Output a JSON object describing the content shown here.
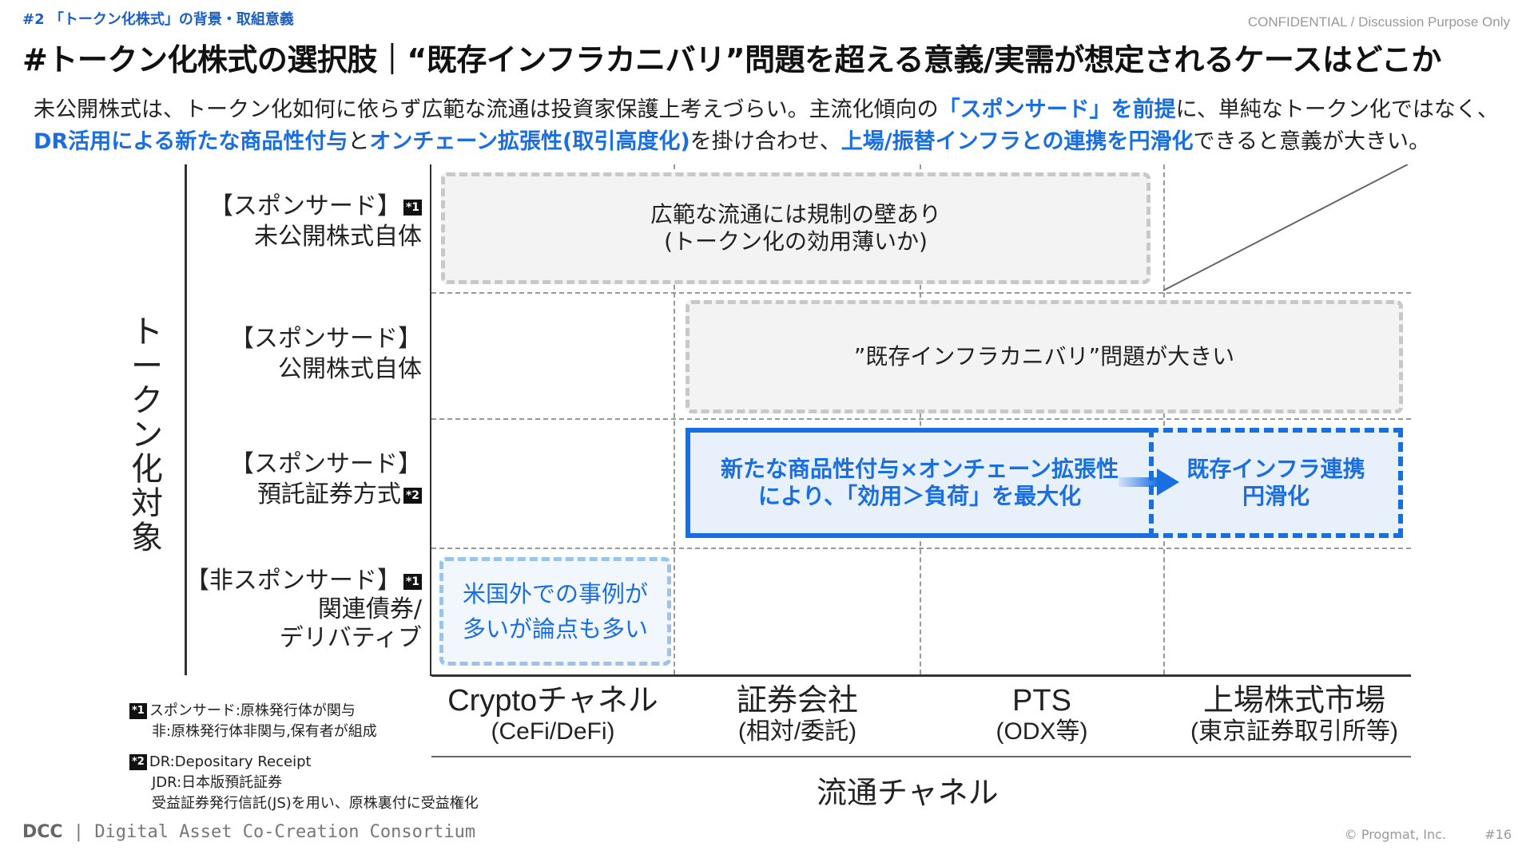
{
  "header": {
    "section_label": "#2 「トークン化株式」の背景・取組意義",
    "confidential": "CONFIDENTIAL / Discussion Purpose Only",
    "title": "#トークン化株式の選択肢｜“既存インフラカニバリ”問題を超える意義/実需が想定されるケースはどこか"
  },
  "intro": {
    "line1_a": "未公開株式は、トークン化如何に依らず広範な流通は投資家保護上考えづらい。主流化傾向の",
    "line1_b": "「スポンサード」を前提",
    "line1_c": "に、単純なトークン化ではなく、",
    "line2_a": "DR活用による新たな商品性付与",
    "line2_b": "と",
    "line2_c": "オンチェーン拡張性(取引高度化)",
    "line2_d": "を掛け合わせ、",
    "line2_e": "上場/振替インフラとの連携を円滑化",
    "line2_f": "できると意義が大きい。"
  },
  "matrix": {
    "y_axis_title": "トークン化対象",
    "x_axis_title": "流通チャネル",
    "rows": [
      {
        "line1": "【スポンサード】",
        "badge": "*1",
        "line2": "未公開株式自体"
      },
      {
        "line1": "【スポンサード】",
        "line2": "公開株式自体"
      },
      {
        "line1": "【スポンサード】",
        "line2": "預託証券方式",
        "badge": "*2"
      },
      {
        "line1": "【非スポンサード】",
        "badge": "*1",
        "line2": "関連債券/",
        "line3": "デリバティブ"
      }
    ],
    "columns": [
      {
        "main": "Cryptoチャネル",
        "sub": "(CeFi/DeFi)"
      },
      {
        "main": "証券会社",
        "sub": "(相対/委託)"
      },
      {
        "main": "PTS",
        "sub": "(ODX等)"
      },
      {
        "main": "上場株式市場",
        "sub": "(東京証券取引所等)"
      }
    ],
    "boxes": {
      "regulation_line1": "広範な流通には規制の壁あり",
      "regulation_line2": "(トークン化の効用薄いか)",
      "cannibal": "”既存インフラカニバリ”問題が大きい",
      "value_line1": "新たな商品性付与×オンチェーン拡張性",
      "value_line2": "により、「効用＞負荷」を最大化",
      "infra_line1": "既存インフラ連携",
      "infra_line2": "円滑化",
      "overseas_line1": "米国外での事例が",
      "overseas_line2": "多いが論点も多い"
    }
  },
  "footnotes": {
    "n1_badge": "*1",
    "n1_line1": "スポンサード:原株発行体が関与",
    "n1_line2": "非:原株発行体非関与,保有者が組成",
    "n2_badge": "*2",
    "n2_line1": "DR:Depositary Receipt",
    "n2_line2": "JDR:日本版預託証券",
    "n2_line3": "受益証券発行信託(JS)を用い、原株裏付に受益権化"
  },
  "footer": {
    "logo": "DCC",
    "org": "Digital Asset Co-Creation Consortium",
    "copyright": "©  Progmat, Inc.",
    "page": "#16"
  },
  "colors": {
    "accent": "#1a6fe0",
    "section": "#1a5fc4",
    "gray_box": "#f3f3f3",
    "blue_box": "#e8f0fc"
  }
}
